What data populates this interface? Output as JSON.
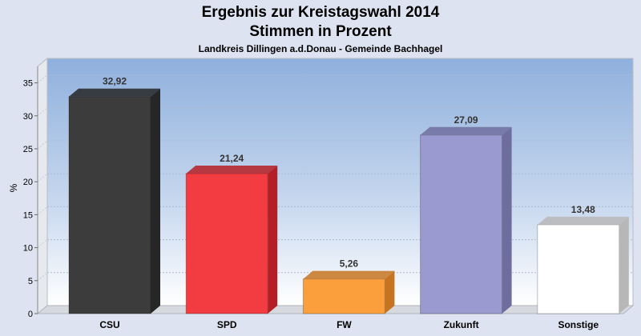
{
  "chart_data": {
    "type": "bar",
    "title": "Ergebnis zur Kreistagswahl 2014",
    "subtitle": "Stimmen in Prozent",
    "caption": "Landkreis Dillingen a.d.Donau - Gemeinde Bachhagel",
    "ylabel": "%",
    "xlabel": "",
    "ylim": [
      0,
      37.5
    ],
    "yticks": [
      0,
      5,
      10,
      15,
      20,
      25,
      30,
      35
    ],
    "categories": [
      "CSU",
      "SPD",
      "FW",
      "Zukunft",
      "Sonstige"
    ],
    "values": [
      32.92,
      21.24,
      5.26,
      27.09,
      13.48
    ],
    "value_labels": [
      "32,92",
      "21,24",
      "5,26",
      "27,09",
      "13,48"
    ],
    "colors": [
      "#3c3c3c",
      "#f33c42",
      "#fb9e3c",
      "#9a9ad0",
      "#ffffff"
    ],
    "side_colors": [
      "#262626",
      "#b51e24",
      "#c77420",
      "#6e6e9e",
      "#b7b7b7"
    ],
    "grid": true,
    "legend": "none"
  }
}
